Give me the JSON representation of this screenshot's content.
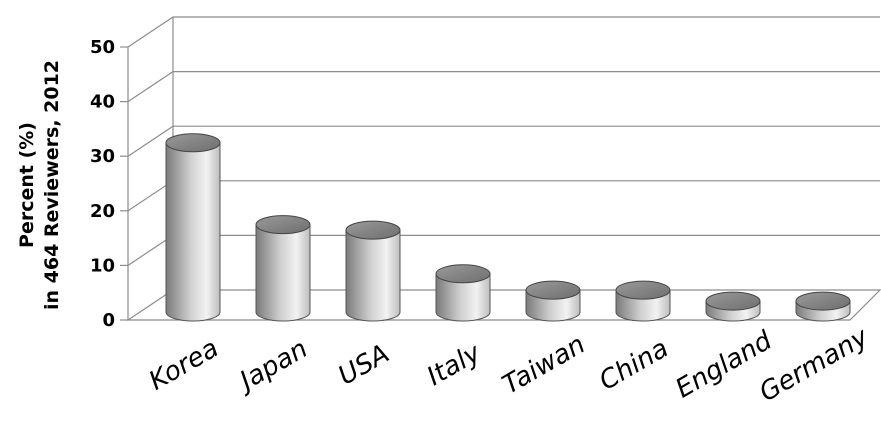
{
  "chart_data": {
    "type": "bar",
    "style": "3d-cylinder",
    "categories": [
      "Korea",
      "Japan",
      "USA",
      "Italy",
      "Taiwan",
      "China",
      "England",
      "Germany"
    ],
    "values": [
      31,
      16,
      15,
      7,
      4,
      4,
      2,
      2
    ],
    "ylabel": [
      "Percent (%)",
      "in 464 Reviewers, 2012"
    ],
    "ylim": [
      0,
      50
    ],
    "yticks": [
      0,
      10,
      20,
      30,
      40,
      50
    ],
    "grid": true,
    "legend": false
  },
  "colors": {
    "bar_dark": "#808080",
    "bar_light": "#f4f4f4",
    "grid": "#8c8c8c",
    "text": "#000000"
  }
}
